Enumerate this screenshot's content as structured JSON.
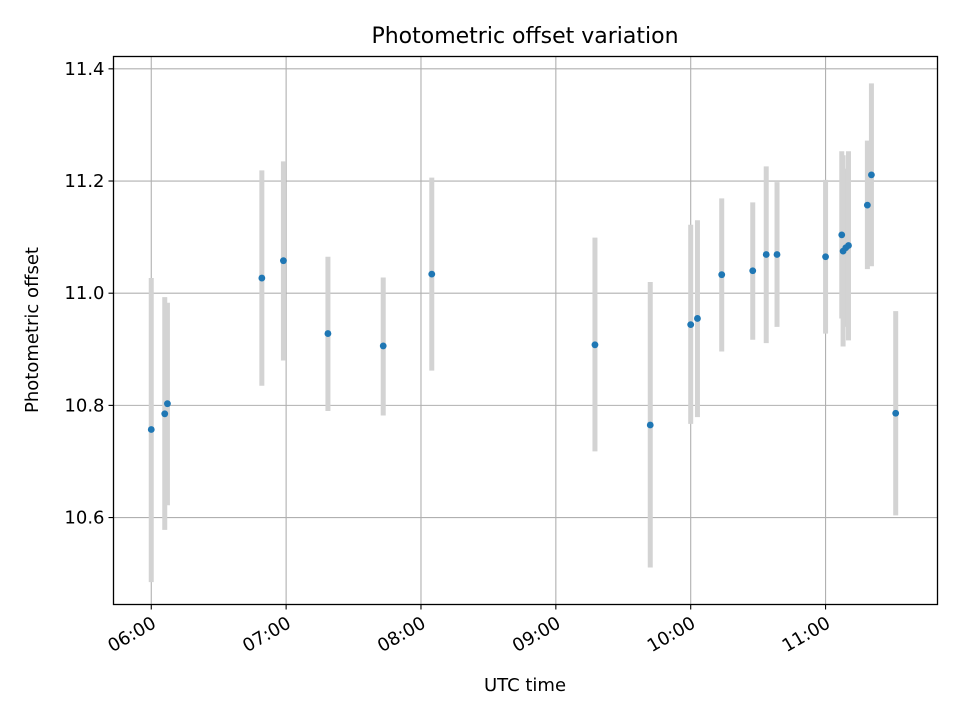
{
  "chart_data": {
    "type": "scatter",
    "title": "Photometric offset variation",
    "xlabel": "UTC time",
    "ylabel": "Photometric offset",
    "x_unit": "hours UTC",
    "xlim": [
      5.72,
      11.83
    ],
    "ylim": [
      10.445,
      11.422
    ],
    "x_ticks": [
      {
        "value": 6,
        "label": "06:00"
      },
      {
        "value": 7,
        "label": "07:00"
      },
      {
        "value": 8,
        "label": "08:00"
      },
      {
        "value": 9,
        "label": "09:00"
      },
      {
        "value": 10,
        "label": "10:00"
      },
      {
        "value": 11,
        "label": "11:00"
      }
    ],
    "y_ticks": [
      {
        "value": 10.6,
        "label": "10.6"
      },
      {
        "value": 10.8,
        "label": "10.8"
      },
      {
        "value": 11.0,
        "label": "11.0"
      },
      {
        "value": 11.2,
        "label": "11.2"
      },
      {
        "value": 11.4,
        "label": "11.4"
      }
    ],
    "grid": true,
    "point_color": "#1f77b4",
    "errorbar_color": "#d3d3d3",
    "points": [
      {
        "x": 6.0,
        "y": 10.757,
        "ylo": 10.485,
        "yhi": 11.027
      },
      {
        "x": 6.1,
        "y": 10.785,
        "ylo": 10.578,
        "yhi": 10.993
      },
      {
        "x": 6.12,
        "y": 10.803,
        "ylo": 10.622,
        "yhi": 10.983
      },
      {
        "x": 6.82,
        "y": 11.027,
        "ylo": 10.835,
        "yhi": 11.219
      },
      {
        "x": 6.98,
        "y": 11.058,
        "ylo": 10.88,
        "yhi": 11.235
      },
      {
        "x": 7.31,
        "y": 10.928,
        "ylo": 10.79,
        "yhi": 11.065
      },
      {
        "x": 7.72,
        "y": 10.906,
        "ylo": 10.782,
        "yhi": 11.028
      },
      {
        "x": 8.08,
        "y": 11.034,
        "ylo": 10.862,
        "yhi": 11.206
      },
      {
        "x": 9.29,
        "y": 10.908,
        "ylo": 10.718,
        "yhi": 11.099
      },
      {
        "x": 9.7,
        "y": 10.765,
        "ylo": 10.511,
        "yhi": 11.02
      },
      {
        "x": 10.0,
        "y": 10.944,
        "ylo": 10.767,
        "yhi": 11.122
      },
      {
        "x": 10.05,
        "y": 10.955,
        "ylo": 10.779,
        "yhi": 11.13
      },
      {
        "x": 10.23,
        "y": 11.033,
        "ylo": 10.896,
        "yhi": 11.169
      },
      {
        "x": 10.46,
        "y": 11.04,
        "ylo": 10.917,
        "yhi": 11.162
      },
      {
        "x": 10.56,
        "y": 11.069,
        "ylo": 10.911,
        "yhi": 11.226
      },
      {
        "x": 10.64,
        "y": 11.069,
        "ylo": 10.94,
        "yhi": 11.198
      },
      {
        "x": 11.0,
        "y": 11.065,
        "ylo": 10.928,
        "yhi": 11.202
      },
      {
        "x": 11.12,
        "y": 11.104,
        "ylo": 10.955,
        "yhi": 11.253
      },
      {
        "x": 11.13,
        "y": 11.075,
        "ylo": 10.905,
        "yhi": 11.246
      },
      {
        "x": 11.15,
        "y": 11.081,
        "ylo": 10.94,
        "yhi": 11.222
      },
      {
        "x": 11.17,
        "y": 11.085,
        "ylo": 10.916,
        "yhi": 11.253
      },
      {
        "x": 11.31,
        "y": 11.157,
        "ylo": 11.043,
        "yhi": 11.272
      },
      {
        "x": 11.34,
        "y": 11.211,
        "ylo": 11.048,
        "yhi": 11.374
      },
      {
        "x": 11.52,
        "y": 10.786,
        "ylo": 10.604,
        "yhi": 10.968
      }
    ]
  }
}
